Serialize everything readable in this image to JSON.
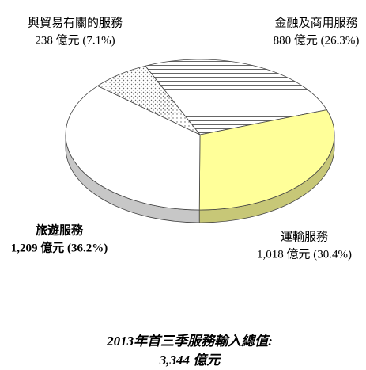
{
  "chart_data": {
    "type": "pie",
    "title": "2013年首三季服務輸入總值:",
    "subtitle": "3,344 億元",
    "categories": [
      "金融及商用服務",
      "運輸服務",
      "旅遊服務",
      "與貿易有關的服務"
    ],
    "values": [
      880,
      1018,
      1209,
      238
    ],
    "value_labels": [
      "880 億元 (26.3%)",
      "1,018 億元 (30.4%)",
      "1,209 億元 (36.2%)",
      "238 億元 (7.1%)"
    ],
    "colors": [
      "#ffffff",
      "#ffff99",
      "#ffffff",
      "#ffffff"
    ]
  }
}
